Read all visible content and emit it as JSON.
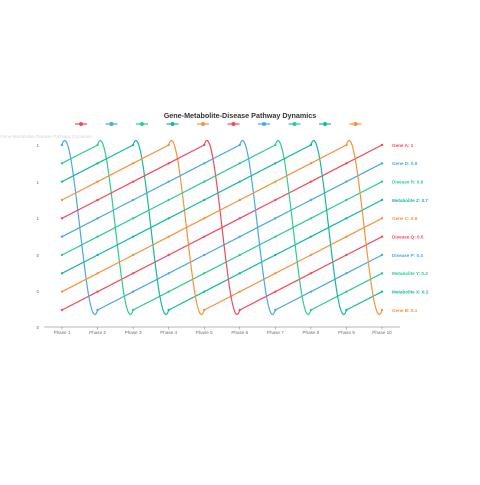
{
  "chart_data": {
    "type": "line",
    "title": "Gene-Metabolite-Disease Pathway Dynamics",
    "subtitle": "Gene-Metabolite-Disease Pathway Dynamics",
    "categories": [
      "Phase 1",
      "Phase 2",
      "Phase 3",
      "Phase 4",
      "Phase 5",
      "Phase 6",
      "Phase 7",
      "Phase 8",
      "Phase 9",
      "Phase 10"
    ],
    "y_tick_labels": [
      "0",
      "0",
      "0",
      "1",
      "1",
      "1"
    ],
    "ylim": [
      0,
      1
    ],
    "grid": false,
    "legend_position": "top",
    "series": [
      {
        "label": "Gene A: 1",
        "color": "#f2495c",
        "values": [
          0.1,
          0.2,
          0.3,
          0.4,
          0.5,
          0.6,
          0.7,
          0.8,
          0.9,
          1.0
        ]
      },
      {
        "label": "Gene D: 0.9",
        "color": "#48a8e8",
        "values": [
          1.0,
          0.1,
          0.2,
          0.3,
          0.4,
          0.5,
          0.6,
          0.7,
          0.8,
          0.9
        ]
      },
      {
        "label": "Disease R: 0.8",
        "color": "#2ecc8f",
        "values": [
          0.9,
          1.0,
          0.1,
          0.2,
          0.3,
          0.4,
          0.5,
          0.6,
          0.7,
          0.8
        ]
      },
      {
        "label": "Metabolite Z: 0.7",
        "color": "#17b8a0",
        "values": [
          0.8,
          0.9,
          1.0,
          0.1,
          0.2,
          0.3,
          0.4,
          0.5,
          0.6,
          0.7
        ]
      },
      {
        "label": "Gene C: 0.6",
        "color": "#f5923e",
        "values": [
          0.7,
          0.8,
          0.9,
          1.0,
          0.1,
          0.2,
          0.3,
          0.4,
          0.5,
          0.6
        ]
      },
      {
        "label": "Disease Q: 0.5",
        "color": "#f2495c",
        "values": [
          0.6,
          0.7,
          0.8,
          0.9,
          1.0,
          0.1,
          0.2,
          0.3,
          0.4,
          0.5
        ]
      },
      {
        "label": "Disease P: 0.4",
        "color": "#48a8e8",
        "values": [
          0.5,
          0.6,
          0.7,
          0.8,
          0.9,
          1.0,
          0.1,
          0.2,
          0.3,
          0.4
        ]
      },
      {
        "label": "Metabolite Y: 0.3",
        "color": "#2ecc8f",
        "values": [
          0.4,
          0.5,
          0.6,
          0.7,
          0.8,
          0.9,
          1.0,
          0.1,
          0.2,
          0.3
        ]
      },
      {
        "label": "Metabolite X: 0.2",
        "color": "#17b8a0",
        "values": [
          0.3,
          0.4,
          0.5,
          0.6,
          0.7,
          0.8,
          0.9,
          1.0,
          0.1,
          0.2
        ]
      },
      {
        "label": "Gene B: 0.1",
        "color": "#f5923e",
        "values": [
          0.2,
          0.3,
          0.4,
          0.5,
          0.6,
          0.7,
          0.8,
          0.9,
          1.0,
          0.1
        ]
      }
    ]
  }
}
